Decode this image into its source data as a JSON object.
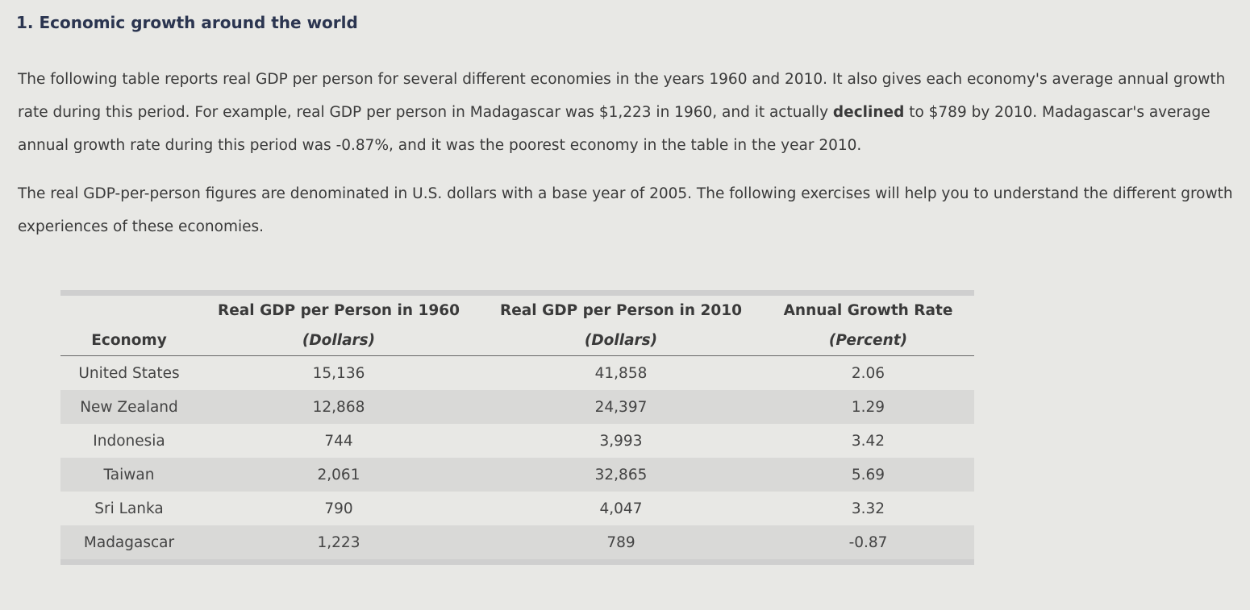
{
  "title": "1. Economic growth around the world",
  "intro": {
    "before_bold": "The following table reports real GDP per person for several different economies in the years 1960 and 2010. It also gives each economy's average annual growth rate during this period. For example, real GDP per person in Madagascar was $1,223 in 1960, and it actually ",
    "bold": "declined",
    "after_bold": " to $789 by 2010. Madagascar's average annual growth rate during this period was -0.87%, and it was the poorest economy in the table in the year 2010."
  },
  "note": "The real GDP-per-person figures are denominated in U.S. dollars with a base year of 2005. The following exercises will help you to understand the different growth experiences of these economies.",
  "table": {
    "headers": [
      {
        "top": "",
        "bottom": "Economy"
      },
      {
        "top": "Real GDP per Person in 1960",
        "bottom": "(Dollars)"
      },
      {
        "top": "Real GDP per Person in 2010",
        "bottom": "(Dollars)"
      },
      {
        "top": "Annual Growth Rate",
        "bottom": "(Percent)"
      }
    ],
    "rows": [
      {
        "economy": "United States",
        "gdp1960": "15,136",
        "gdp2010": "41,858",
        "growth": "2.06"
      },
      {
        "economy": "New Zealand",
        "gdp1960": "12,868",
        "gdp2010": "24,397",
        "growth": "1.29"
      },
      {
        "economy": "Indonesia",
        "gdp1960": "744",
        "gdp2010": "3,993",
        "growth": "3.42"
      },
      {
        "economy": "Taiwan",
        "gdp1960": "2,061",
        "gdp2010": "32,865",
        "growth": "5.69"
      },
      {
        "economy": "Sri Lanka",
        "gdp1960": "790",
        "gdp2010": "4,047",
        "growth": "3.32"
      },
      {
        "economy": "Madagascar",
        "gdp1960": "1,223",
        "gdp2010": "789",
        "growth": "-0.87"
      }
    ]
  }
}
